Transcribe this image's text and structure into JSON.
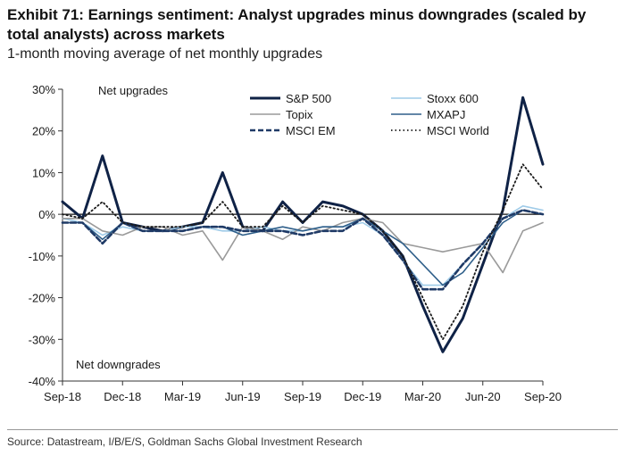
{
  "title": "Exhibit 71: Earnings sentiment: Analyst upgrades minus downgrades (scaled by total analysts) across markets",
  "subtitle": "1-month moving average of net monthly upgrades",
  "source": "Source: Datastream, I/B/E/S, Goldman Sachs Global Investment Research",
  "chart_data": {
    "type": "line",
    "x": [
      "2018-09",
      "2018-10",
      "2018-11",
      "2018-12",
      "2019-01",
      "2019-02",
      "2019-03",
      "2019-04",
      "2019-05",
      "2019-06",
      "2019-07",
      "2019-08",
      "2019-09",
      "2019-10",
      "2019-11",
      "2019-12",
      "2020-01",
      "2020-02",
      "2020-03",
      "2020-04",
      "2020-05",
      "2020-06",
      "2020-07",
      "2020-08",
      "2020-09"
    ],
    "x_tick_labels": [
      "Sep-18",
      "Dec-18",
      "Mar-19",
      "Jun-19",
      "Sep-19",
      "Dec-19",
      "Mar-20",
      "Jun-20",
      "Sep-20"
    ],
    "ylim": [
      -40,
      30
    ],
    "y_ticks": [
      30,
      20,
      10,
      0,
      -10,
      -20,
      -30,
      -40
    ],
    "y_tick_labels": [
      "30%",
      "20%",
      "10%",
      "0%",
      "-10%",
      "-20%",
      "-30%",
      "-40%"
    ],
    "annotations": [
      "Net upgrades",
      "Net downgrades"
    ],
    "grid": false,
    "legend_position": "top-right",
    "series": [
      {
        "name": "S&P 500",
        "color": "#0f2246",
        "dash": "solid",
        "width": 3,
        "values": [
          3,
          -1,
          14,
          -2,
          -3,
          -4,
          -3,
          -2,
          10,
          -3,
          -4,
          3,
          -2,
          3,
          2,
          0,
          -4,
          -10,
          -22,
          -33,
          -25,
          -12,
          1,
          28,
          12
        ]
      },
      {
        "name": "Stoxx 600",
        "color": "#9fcbe8",
        "dash": "solid",
        "width": 1.6,
        "values": [
          -1,
          -2,
          -5,
          -3,
          -4,
          -4,
          -3,
          -3,
          -4,
          -4,
          -3,
          -4,
          -4,
          -3,
          -3,
          -2,
          -5,
          -11,
          -17,
          -17,
          -12,
          -7,
          -1,
          2,
          1
        ]
      },
      {
        "name": "Topix",
        "color": "#9a9a9a",
        "dash": "solid",
        "width": 1.6,
        "values": [
          -1,
          -1,
          -4,
          -5,
          -3,
          -3,
          -5,
          -4,
          -11,
          -3,
          -4,
          -6,
          -3,
          -4,
          -2,
          -1,
          -2,
          -7,
          -8,
          -9,
          -8,
          -7,
          -14,
          -4,
          -2
        ]
      },
      {
        "name": "MXAPJ",
        "color": "#2f5f8a",
        "dash": "solid",
        "width": 1.6,
        "values": [
          -2,
          -2,
          -6,
          -2,
          -4,
          -4,
          -4,
          -3,
          -3,
          -5,
          -4,
          -3,
          -4,
          -3,
          -3,
          -1,
          -4,
          -7,
          -12,
          -17,
          -14,
          -8,
          -2,
          1,
          0
        ]
      },
      {
        "name": "MSCI EM",
        "color": "#1f3a66",
        "dash": "6 3",
        "width": 2.6,
        "values": [
          -2,
          -2,
          -7,
          -2,
          -4,
          -4,
          -4,
          -3,
          -3,
          -4,
          -4,
          -4,
          -5,
          -4,
          -4,
          -1,
          -5,
          -11,
          -18,
          -18,
          -12,
          -7,
          -1,
          1,
          0
        ]
      },
      {
        "name": "MSCI World",
        "color": "#1a1a1a",
        "dash": "1.5 3",
        "width": 1.8,
        "values": [
          0,
          -1,
          3,
          -2,
          -3,
          -3,
          -3,
          -2,
          3,
          -3,
          -3,
          2,
          -2,
          2,
          1,
          0,
          -4,
          -10,
          -20,
          -30,
          -22,
          -9,
          1,
          12,
          6
        ]
      }
    ]
  }
}
